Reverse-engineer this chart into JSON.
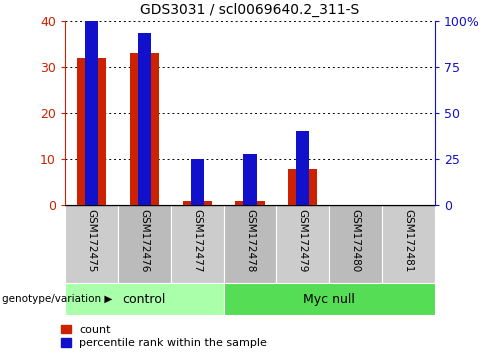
{
  "title": "GDS3031 / scl0069640.2_311-S",
  "categories": [
    "GSM172475",
    "GSM172476",
    "GSM172477",
    "GSM172478",
    "GSM172479",
    "GSM172480",
    "GSM172481"
  ],
  "count_values": [
    32,
    33,
    1,
    1,
    8,
    0,
    0
  ],
  "percentile_values": [
    40,
    37.5,
    10,
    11.25,
    16.25,
    0,
    0
  ],
  "ylim_left": [
    0,
    40
  ],
  "ylim_right": [
    0,
    100
  ],
  "yticks_left": [
    0,
    10,
    20,
    30,
    40
  ],
  "yticks_right": [
    0,
    25,
    50,
    75,
    100
  ],
  "ytick_labels_right": [
    "0",
    "25",
    "50",
    "75",
    "100%"
  ],
  "count_color": "#cc2200",
  "percentile_color": "#1111cc",
  "control_label": "control",
  "myc_null_label": "Myc null",
  "group_bg_light": "#aaffaa",
  "group_bg_dark": "#55dd55",
  "tick_label_bg": "#cccccc",
  "tick_label_bg2": "#bbbbbb",
  "legend_count_label": "count",
  "legend_percentile_label": "percentile rank within the sample",
  "genotype_label": "genotype/variation",
  "bar_width": 0.55,
  "pct_bar_width": 0.25
}
